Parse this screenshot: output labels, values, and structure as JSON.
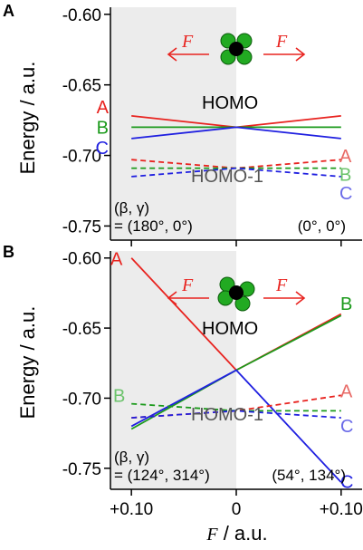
{
  "figure": {
    "y_axis_title": "Energy / a.u.",
    "x_axis_title_var": "F",
    "x_axis_title_unit": " / a.u."
  },
  "colors": {
    "A": "#e8231f",
    "B": "#1b9a1b",
    "C": "#1f1fe0",
    "shade": "#ececec"
  },
  "chart_data": [
    {
      "panel": "A",
      "type": "line",
      "ylim": [
        -0.76,
        -0.595
      ],
      "xlim": [
        -0.12,
        0.12
      ],
      "yticks": [
        "-0.60",
        "-0.65",
        "-0.70",
        "-0.75"
      ],
      "ytick_values": [
        -0.6,
        -0.65,
        -0.7,
        -0.75
      ],
      "homo_label": "HOMO",
      "homo1_label": "HOMO-1",
      "angle_label": "(β, γ)",
      "angle_left": "= (180°, 0°)",
      "angle_right": "(0°, 0°)",
      "field_label": "F",
      "series": [
        {
          "name": "A",
          "level": "HOMO",
          "style": "solid",
          "x": [
            -0.1,
            0,
            0.1
          ],
          "y": [
            -0.672,
            -0.68,
            -0.672
          ]
        },
        {
          "name": "B",
          "level": "HOMO",
          "style": "solid",
          "x": [
            -0.1,
            0,
            0.1
          ],
          "y": [
            -0.68,
            -0.68,
            -0.68
          ]
        },
        {
          "name": "C",
          "level": "HOMO",
          "style": "solid",
          "x": [
            -0.1,
            0,
            0.1
          ],
          "y": [
            -0.688,
            -0.68,
            -0.688
          ]
        },
        {
          "name": "A",
          "level": "HOMO-1",
          "style": "dashed",
          "x": [
            -0.1,
            0,
            0.1
          ],
          "y": [
            -0.703,
            -0.709,
            -0.703
          ]
        },
        {
          "name": "B",
          "level": "HOMO-1",
          "style": "dashed",
          "x": [
            -0.1,
            0,
            0.1
          ],
          "y": [
            -0.709,
            -0.709,
            -0.709
          ]
        },
        {
          "name": "C",
          "level": "HOMO-1",
          "style": "dashed",
          "x": [
            -0.1,
            0,
            0.1
          ],
          "y": [
            -0.715,
            -0.709,
            -0.715
          ]
        }
      ]
    },
    {
      "panel": "B",
      "type": "line",
      "ylim": [
        -0.765,
        -0.595
      ],
      "xlim": [
        -0.12,
        0.12
      ],
      "yticks": [
        "-0.60",
        "-0.65",
        "-0.70",
        "-0.75"
      ],
      "ytick_values": [
        -0.6,
        -0.65,
        -0.7,
        -0.75
      ],
      "xticks": [
        "+0.10",
        "0",
        "+0.10"
      ],
      "xtick_values": [
        -0.1,
        0,
        0.1
      ],
      "homo_label": "HOMO",
      "homo1_label": "HOMO-1",
      "angle_label": "(β, γ)",
      "angle_left": "= (124°, 314°)",
      "angle_right": "(54°, 134°)",
      "field_label": "F",
      "series": [
        {
          "name": "A",
          "level": "HOMO",
          "style": "solid",
          "x": [
            -0.1,
            0,
            0.1
          ],
          "y": [
            -0.6,
            -0.68,
            -0.64
          ]
        },
        {
          "name": "B",
          "level": "HOMO",
          "style": "solid",
          "x": [
            -0.1,
            0,
            0.1
          ],
          "y": [
            -0.722,
            -0.68,
            -0.641
          ]
        },
        {
          "name": "C",
          "level": "HOMO",
          "style": "solid",
          "x": [
            -0.1,
            0,
            0.1
          ],
          "y": [
            -0.72,
            -0.68,
            -0.76
          ]
        },
        {
          "name": "A",
          "level": "HOMO-1",
          "style": "dashed",
          "x": [
            -0.1,
            0,
            0.1
          ],
          "y": [
            -0.714,
            -0.709,
            -0.698
          ]
        },
        {
          "name": "B",
          "level": "HOMO-1",
          "style": "dashed",
          "x": [
            -0.1,
            0,
            0.1
          ],
          "y": [
            -0.704,
            -0.709,
            -0.709
          ]
        },
        {
          "name": "C",
          "level": "HOMO-1",
          "style": "dashed",
          "x": [
            -0.1,
            0,
            0.1
          ],
          "y": [
            -0.714,
            -0.709,
            -0.714
          ]
        }
      ]
    }
  ]
}
